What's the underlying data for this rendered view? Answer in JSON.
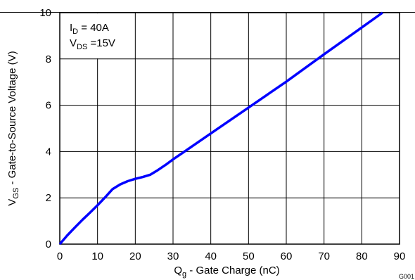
{
  "chart_data": {
    "type": "line",
    "xlabel": {
      "main": "Q",
      "sub": "g",
      "rest": " - Gate Charge  (nC)"
    },
    "ylabel": {
      "main": "V",
      "sub": "GS",
      "rest": " - Gate-to-Source Voltage (V)"
    },
    "xlim": [
      0,
      90
    ],
    "ylim": [
      0,
      10
    ],
    "xticks": [
      "0",
      "10",
      "20",
      "30",
      "40",
      "50",
      "60",
      "70",
      "80",
      "90"
    ],
    "yticks": [
      "0",
      "2",
      "4",
      "6",
      "8",
      "10"
    ],
    "grid": true,
    "annotation": [
      {
        "main": "I",
        "sub": "D",
        "rest": " = 40A"
      },
      {
        "main": "V",
        "sub": "DS",
        "rest": " =15V"
      }
    ],
    "figure_code": "G001",
    "series": [
      {
        "color": "#0000ff",
        "x": [
          0,
          2,
          4,
          6,
          8,
          10,
          12,
          14,
          16,
          18,
          20,
          22,
          24,
          26,
          28,
          30,
          40,
          50,
          60,
          70,
          80,
          85.5
        ],
        "y": [
          0,
          0.38,
          0.72,
          1.05,
          1.36,
          1.68,
          2.02,
          2.38,
          2.58,
          2.72,
          2.82,
          2.9,
          3.0,
          3.2,
          3.42,
          3.66,
          4.78,
          5.9,
          7.02,
          8.2,
          9.36,
          10.0
        ]
      }
    ]
  }
}
